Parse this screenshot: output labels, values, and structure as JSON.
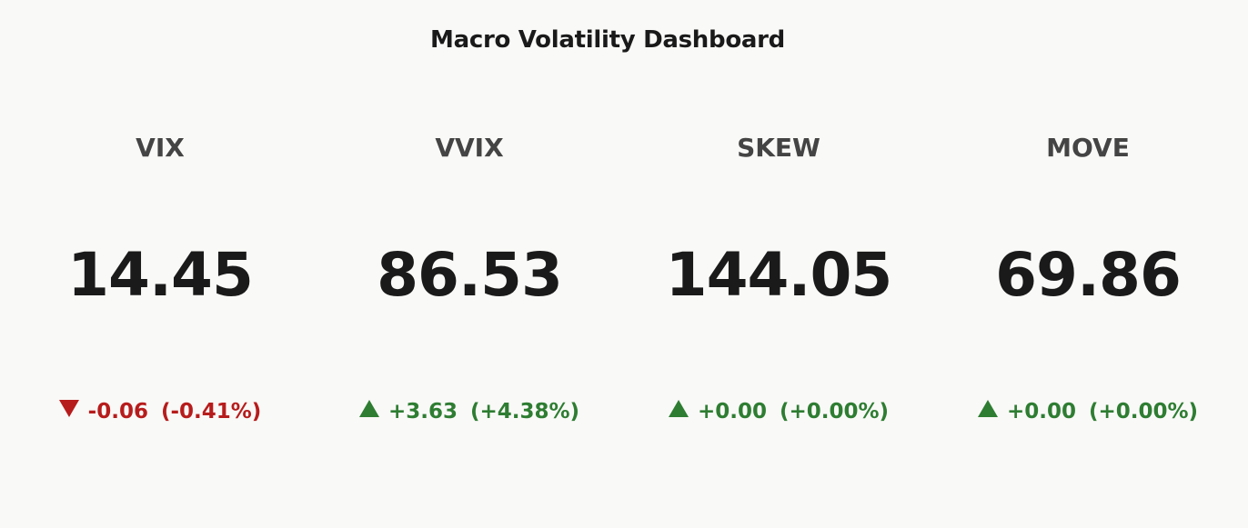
{
  "header": {
    "title": "Macro Volatility Dashboard"
  },
  "colors": {
    "background": "#f9f9f7",
    "negative": "#b71c1c",
    "positive": "#2e7d32",
    "label": "#444444",
    "value": "#1a1a1a"
  },
  "cards": [
    {
      "label": "VIX",
      "value": "14.45",
      "direction": "down",
      "direction_icon": "triangle-down-icon",
      "change": "-0.06",
      "change_pct": "(-0.41%)"
    },
    {
      "label": "VVIX",
      "value": "86.53",
      "direction": "up",
      "direction_icon": "triangle-up-icon",
      "change": "+3.63",
      "change_pct": "(+4.38%)"
    },
    {
      "label": "SKEW",
      "value": "144.05",
      "direction": "up",
      "direction_icon": "triangle-up-icon",
      "change": "+0.00",
      "change_pct": "(+0.00%)"
    },
    {
      "label": "MOVE",
      "value": "69.86",
      "direction": "up",
      "direction_icon": "triangle-up-icon",
      "change": "+0.00",
      "change_pct": "(+0.00%)"
    }
  ]
}
